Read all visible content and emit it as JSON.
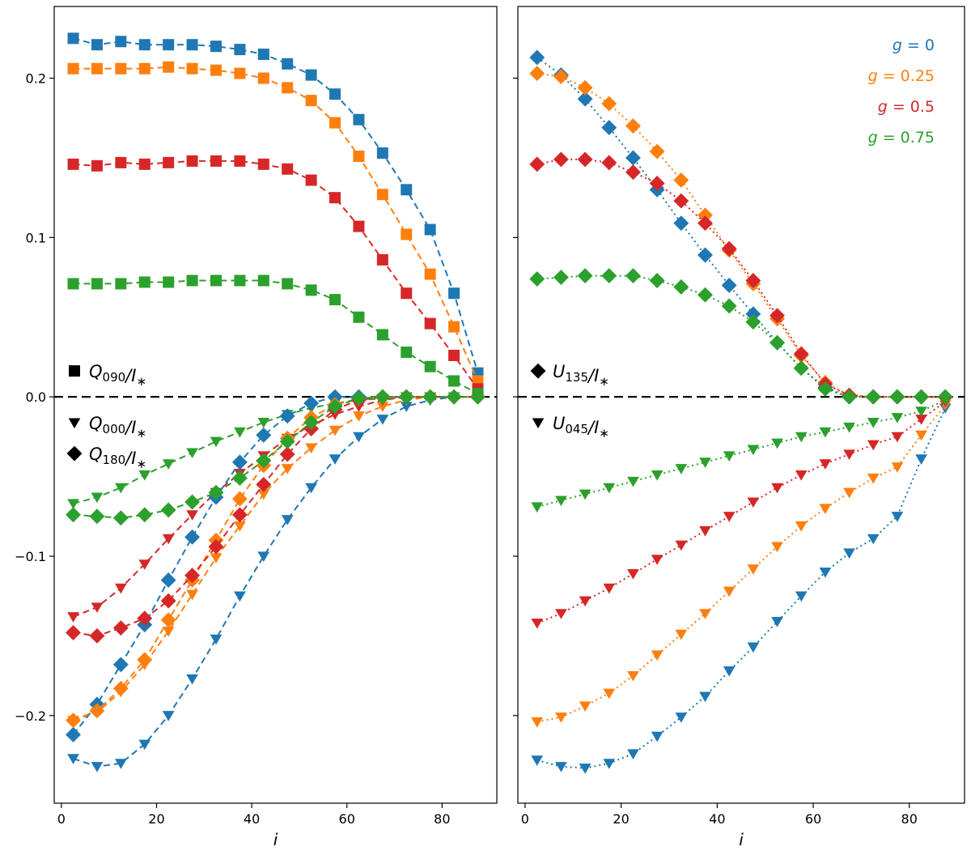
{
  "chart_data": {
    "type": "scatter",
    "shared_y": true,
    "x_values": [
      2.5,
      7.5,
      12.5,
      17.5,
      22.5,
      27.5,
      32.5,
      37.5,
      42.5,
      47.5,
      52.5,
      57.5,
      62.5,
      67.5,
      72.5,
      77.5,
      82.5,
      87.5
    ],
    "colors": {
      "g0": "#1f77b4",
      "g025": "#ff7f0e",
      "g05": "#d62728",
      "g075": "#2ca02c",
      "ref": "#000000"
    },
    "legend": [
      {
        "label": "g = 0",
        "color": "g0"
      },
      {
        "label": "g = 0.25",
        "color": "g025"
      },
      {
        "label": "g = 0.5",
        "color": "g05"
      },
      {
        "label": "g = 0.75",
        "color": "g075"
      }
    ],
    "panels": [
      {
        "name": "left",
        "xlabel": "i",
        "xlim": [
          -1.5,
          91.5
        ],
        "ylim": [
          -0.255,
          0.245
        ],
        "xticks": [
          0,
          20,
          40,
          60,
          80
        ],
        "yticks": [
          -0.2,
          -0.1,
          0.0,
          0.1,
          0.2
        ],
        "ytick_labels": [
          "−0.2",
          "−0.1",
          "0.0",
          "0.1",
          "0.2"
        ],
        "hline": 0.0,
        "marker_labels": [
          {
            "marker": "square",
            "main": "Q",
            "sub": "090",
            "tail": "/I",
            "star": "∗",
            "pos": "upper"
          },
          {
            "marker": "triangle",
            "main": "Q",
            "sub": "000",
            "tail": "/I",
            "star": "∗",
            "pos": "lower1"
          },
          {
            "marker": "diamond",
            "main": "Q",
            "sub": "180",
            "tail": "/I",
            "star": "∗",
            "pos": "lower2"
          }
        ],
        "series": [
          {
            "name": "Q090 g=0",
            "color": "g0",
            "marker": "square",
            "dash": "dashed",
            "values": [
              0.225,
              0.221,
              0.223,
              0.221,
              0.221,
              0.221,
              0.22,
              0.218,
              0.215,
              0.209,
              0.202,
              0.19,
              0.174,
              0.153,
              0.13,
              0.105,
              0.065,
              0.015
            ]
          },
          {
            "name": "Q090 g=0.25",
            "color": "g025",
            "marker": "square",
            "dash": "dashed",
            "values": [
              0.206,
              0.206,
              0.206,
              0.206,
              0.207,
              0.206,
              0.205,
              0.203,
              0.2,
              0.194,
              0.186,
              0.172,
              0.151,
              0.127,
              0.102,
              0.077,
              0.044,
              0.01
            ]
          },
          {
            "name": "Q090 g=0.5",
            "color": "g05",
            "marker": "square",
            "dash": "dashed",
            "values": [
              0.146,
              0.145,
              0.147,
              0.146,
              0.147,
              0.148,
              0.148,
              0.148,
              0.146,
              0.143,
              0.136,
              0.125,
              0.107,
              0.086,
              0.065,
              0.046,
              0.026,
              0.005
            ]
          },
          {
            "name": "Q090 g=0.75",
            "color": "g075",
            "marker": "square",
            "dash": "dashed",
            "values": [
              0.071,
              0.071,
              0.071,
              0.072,
              0.072,
              0.073,
              0.073,
              0.073,
              0.073,
              0.071,
              0.067,
              0.061,
              0.05,
              0.039,
              0.028,
              0.019,
              0.01,
              0.002
            ]
          },
          {
            "name": "Q000 g=0",
            "color": "g0",
            "marker": "triangle",
            "dash": "dashed",
            "values": [
              -0.227,
              -0.232,
              -0.23,
              -0.218,
              -0.2,
              -0.177,
              -0.152,
              -0.125,
              -0.1,
              -0.077,
              -0.057,
              -0.039,
              -0.025,
              -0.014,
              -0.006,
              -0.002,
              0.0,
              0.0
            ]
          },
          {
            "name": "Q000 g=0.25",
            "color": "g025",
            "marker": "triangle",
            "dash": "dashed",
            "values": [
              -0.203,
              -0.198,
              -0.185,
              -0.168,
              -0.147,
              -0.124,
              -0.101,
              -0.081,
              -0.061,
              -0.045,
              -0.032,
              -0.021,
              -0.012,
              -0.006,
              -0.002,
              0.0,
              0.0,
              0.0
            ]
          },
          {
            "name": "Q000 g=0.5",
            "color": "g05",
            "marker": "triangle",
            "dash": "dashed",
            "values": [
              -0.138,
              -0.132,
              -0.12,
              -0.105,
              -0.089,
              -0.074,
              -0.06,
              -0.048,
              -0.037,
              -0.026,
              -0.018,
              -0.011,
              -0.006,
              -0.002,
              0.0,
              0.0,
              0.0,
              0.0
            ]
          },
          {
            "name": "Q000 g=0.75",
            "color": "g075",
            "marker": "triangle",
            "dash": "dashed",
            "values": [
              -0.067,
              -0.063,
              -0.057,
              -0.049,
              -0.042,
              -0.035,
              -0.028,
              -0.022,
              -0.016,
              -0.011,
              -0.007,
              -0.004,
              -0.002,
              -0.001,
              0.0,
              0.0,
              0.0,
              0.0
            ]
          },
          {
            "name": "Q180 g=0",
            "color": "g0",
            "marker": "diamond",
            "dash": "dashed",
            "values": [
              -0.212,
              -0.193,
              -0.168,
              -0.143,
              -0.115,
              -0.088,
              -0.063,
              -0.041,
              -0.024,
              -0.012,
              -0.004,
              0.0,
              0.0,
              0.0,
              0.0,
              0.0,
              0.0,
              0.0
            ]
          },
          {
            "name": "Q180 g=0.25",
            "color": "g025",
            "marker": "diamond",
            "dash": "dashed",
            "values": [
              -0.203,
              -0.197,
              -0.183,
              -0.165,
              -0.14,
              -0.115,
              -0.09,
              -0.064,
              -0.043,
              -0.026,
              -0.013,
              -0.005,
              -0.001,
              0.0,
              0.0,
              0.0,
              0.0,
              0.0
            ]
          },
          {
            "name": "Q180 g=0.5",
            "color": "g05",
            "marker": "diamond",
            "dash": "dashed",
            "values": [
              -0.148,
              -0.15,
              -0.145,
              -0.139,
              -0.128,
              -0.112,
              -0.094,
              -0.074,
              -0.055,
              -0.036,
              -0.02,
              -0.008,
              -0.002,
              0.0,
              0.0,
              0.0,
              0.0,
              0.0
            ]
          },
          {
            "name": "Q180 g=0.75",
            "color": "g075",
            "marker": "diamond",
            "dash": "dashed",
            "values": [
              -0.074,
              -0.075,
              -0.076,
              -0.074,
              -0.071,
              -0.066,
              -0.06,
              -0.051,
              -0.04,
              -0.028,
              -0.016,
              -0.006,
              -0.001,
              0.0,
              0.0,
              0.0,
              0.0,
              0.0
            ]
          }
        ]
      },
      {
        "name": "right",
        "xlabel": "i",
        "xlim": [
          -1.5,
          91.5
        ],
        "ylim": [
          -0.255,
          0.245
        ],
        "xticks": [
          0,
          20,
          40,
          60,
          80
        ],
        "yticks": [
          -0.2,
          -0.1,
          0.0,
          0.1,
          0.2
        ],
        "ytick_labels": [
          "",
          "",
          "",
          "",
          ""
        ],
        "hline": 0.0,
        "marker_labels": [
          {
            "marker": "diamond",
            "main": "U",
            "sub": "135",
            "tail": "/I",
            "star": "∗",
            "pos": "upper"
          },
          {
            "marker": "triangle",
            "main": "U",
            "sub": "045",
            "tail": "/I",
            "star": "∗",
            "pos": "lower1"
          }
        ],
        "series": [
          {
            "name": "U135 g=0",
            "color": "g0",
            "marker": "diamond",
            "dash": "dotted",
            "values": [
              0.213,
              0.202,
              0.187,
              0.169,
              0.15,
              0.13,
              0.109,
              0.089,
              0.07,
              0.052,
              0.034,
              0.018,
              0.006,
              0.0,
              0.0,
              0.0,
              0.0,
              0.0
            ]
          },
          {
            "name": "U135 g=0.25",
            "color": "g025",
            "marker": "diamond",
            "dash": "dotted",
            "values": [
              0.203,
              0.201,
              0.194,
              0.184,
              0.17,
              0.154,
              0.136,
              0.114,
              0.092,
              0.071,
              0.049,
              0.026,
              0.009,
              0.001,
              0.0,
              0.0,
              0.0,
              0.0
            ]
          },
          {
            "name": "U135 g=0.5",
            "color": "g05",
            "marker": "diamond",
            "dash": "dotted",
            "values": [
              0.146,
              0.149,
              0.149,
              0.147,
              0.141,
              0.134,
              0.123,
              0.109,
              0.093,
              0.073,
              0.051,
              0.027,
              0.008,
              0.001,
              0.0,
              0.0,
              0.0,
              0.0
            ]
          },
          {
            "name": "U135 g=0.75",
            "color": "g075",
            "marker": "diamond",
            "dash": "dotted",
            "values": [
              0.074,
              0.075,
              0.076,
              0.076,
              0.076,
              0.073,
              0.069,
              0.064,
              0.057,
              0.047,
              0.034,
              0.018,
              0.005,
              0.0,
              0.0,
              0.0,
              0.0,
              0.0
            ]
          },
          {
            "name": "U045 g=0",
            "color": "g0",
            "marker": "triangle",
            "dash": "dotted",
            "values": [
              -0.228,
              -0.232,
              -0.233,
              -0.23,
              -0.224,
              -0.213,
              -0.201,
              -0.188,
              -0.172,
              -0.157,
              -0.141,
              -0.125,
              -0.11,
              -0.098,
              -0.089,
              -0.075,
              -0.039,
              -0.007
            ]
          },
          {
            "name": "U045 g=0.25",
            "color": "g025",
            "marker": "triangle",
            "dash": "dotted",
            "values": [
              -0.204,
              -0.201,
              -0.194,
              -0.186,
              -0.175,
              -0.162,
              -0.149,
              -0.136,
              -0.122,
              -0.108,
              -0.094,
              -0.081,
              -0.07,
              -0.06,
              -0.051,
              -0.044,
              -0.024,
              -0.005
            ]
          },
          {
            "name": "U045 g=0.5",
            "color": "g05",
            "marker": "triangle",
            "dash": "dotted",
            "values": [
              -0.142,
              -0.136,
              -0.128,
              -0.12,
              -0.111,
              -0.102,
              -0.093,
              -0.084,
              -0.075,
              -0.066,
              -0.057,
              -0.049,
              -0.042,
              -0.036,
              -0.03,
              -0.025,
              -0.014,
              -0.003
            ]
          },
          {
            "name": "U045 g=0.75",
            "color": "g075",
            "marker": "triangle",
            "dash": "dotted",
            "values": [
              -0.069,
              -0.065,
              -0.061,
              -0.057,
              -0.053,
              -0.049,
              -0.045,
              -0.041,
              -0.037,
              -0.033,
              -0.029,
              -0.025,
              -0.022,
              -0.019,
              -0.016,
              -0.013,
              -0.009,
              -0.002
            ]
          }
        ]
      }
    ]
  }
}
